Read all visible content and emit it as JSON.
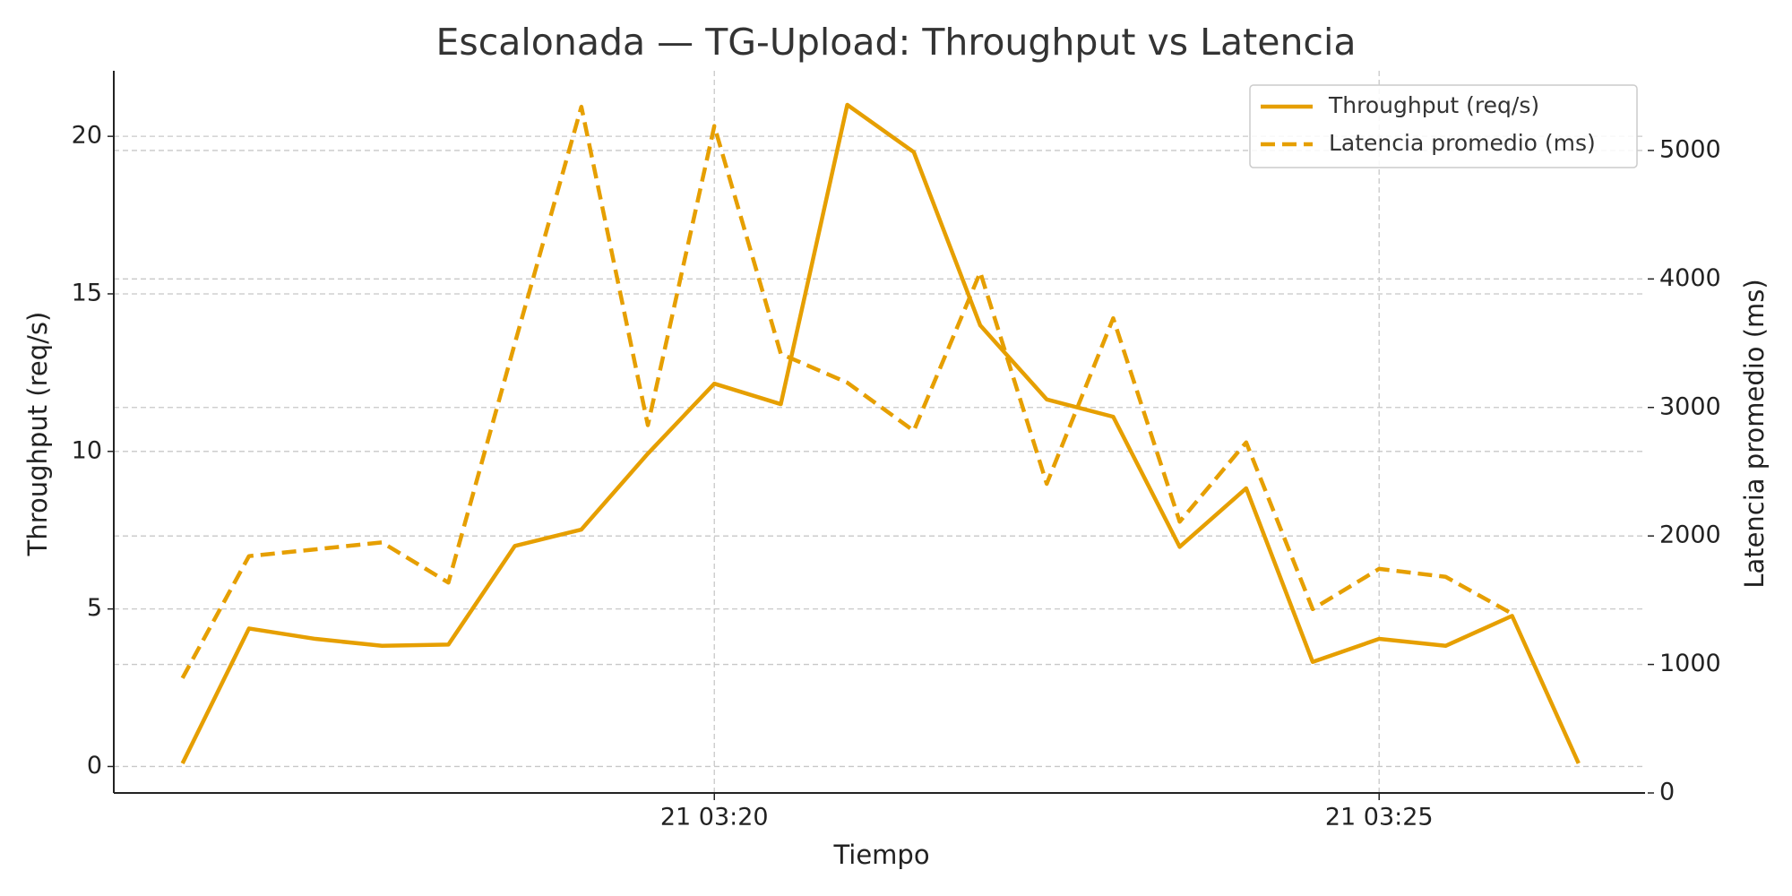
{
  "chart_data": {
    "type": "line",
    "title": "Escalonada — TG-Upload: Throughput vs Latencia",
    "xlabel": "Tiempo",
    "ylabel": "Throughput (req/s)",
    "y2label": "Latencia promedio (ms)",
    "x": [
      "21 03:16:00",
      "21 03:16:30",
      "21 03:17:00",
      "21 03:17:30",
      "21 03:18:00",
      "21 03:18:30",
      "21 03:19:00",
      "21 03:19:30",
      "21 03:20:00",
      "21 03:20:30",
      "21 03:21:00",
      "21 03:21:30",
      "21 03:22:00",
      "21 03:22:30",
      "21 03:23:00",
      "21 03:23:30",
      "21 03:24:00",
      "21 03:24:30",
      "21 03:25:00",
      "21 03:25:30",
      "21 03:26:00",
      "21 03:26:30"
    ],
    "series": [
      {
        "name": "Throughput (req/s)",
        "color": "#e69f00",
        "style": "solid",
        "axis": "y",
        "values": [
          0.1,
          4.38,
          4.05,
          3.83,
          3.87,
          7.0,
          7.52,
          9.93,
          12.15,
          11.5,
          21.0,
          19.5,
          14.0,
          11.65,
          11.1,
          6.97,
          8.83,
          3.32,
          4.05,
          3.83,
          4.78,
          0.1
        ]
      },
      {
        "name": "Latencia promedio (ms)",
        "color": "#e69f00",
        "style": "dashed",
        "axis": "y2",
        "values": [
          894,
          1843,
          1896,
          1950,
          1637,
          3500,
          5340,
          2862,
          5190,
          3417,
          3193,
          2818,
          4052,
          2406,
          3694,
          2111,
          2728,
          1431,
          1744,
          1682,
          1395,
          null
        ]
      }
    ],
    "xlim": [
      "21 03:15:29",
      "21 03:27:00"
    ],
    "xticks": [
      {
        "value": "21 03:20:00",
        "label": "21 03:20"
      },
      {
        "value": "21 03:25:00",
        "label": "21 03:25"
      }
    ],
    "ylim": [
      -0.84,
      22.08
    ],
    "yticks": [
      0,
      5,
      10,
      15,
      20
    ],
    "y2lim": [
      0,
      5620
    ],
    "y2ticks": [
      0,
      1000,
      2000,
      3000,
      4000,
      5000
    ],
    "grid": true,
    "legend": "upper right"
  }
}
